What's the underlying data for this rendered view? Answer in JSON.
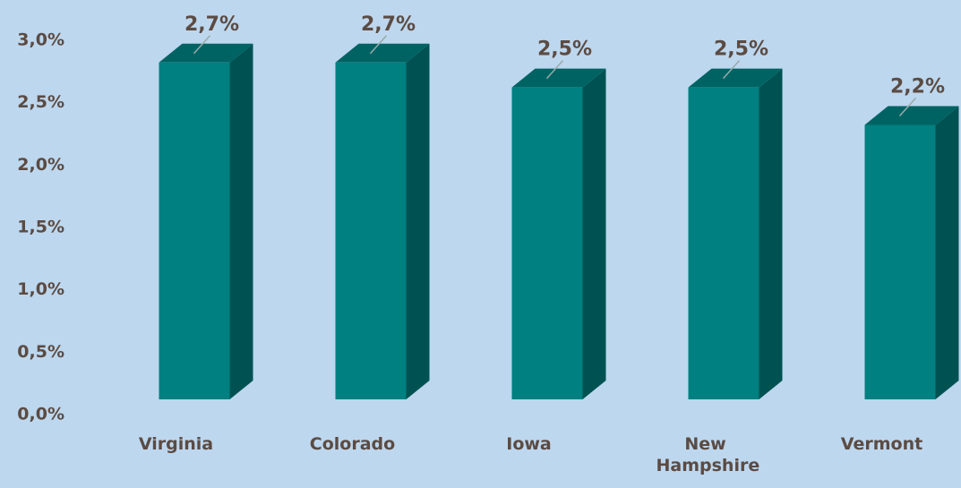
{
  "chart_data": {
    "type": "bar",
    "categories": [
      "Virginia",
      "Colorado",
      "Iowa",
      "New Hampshire",
      "Vermont"
    ],
    "values": [
      2.7,
      2.7,
      2.5,
      2.5,
      2.2
    ],
    "value_labels": [
      "2,7%",
      "2,7%",
      "2,5%",
      "2,5%",
      "2,2%"
    ],
    "color": "#008080",
    "ylim": [
      0,
      3
    ],
    "yticks": [
      {
        "value": 0,
        "label": "0,0%"
      },
      {
        "value": 0.5,
        "label": "0,5%"
      },
      {
        "value": 1,
        "label": "1,0%"
      },
      {
        "value": 1.5,
        "label": "1,5%"
      },
      {
        "value": 2,
        "label": "2,0%"
      },
      {
        "value": 2.5,
        "label": "2,5%"
      },
      {
        "value": 3,
        "label": "3,0%"
      }
    ],
    "grid": false
  }
}
